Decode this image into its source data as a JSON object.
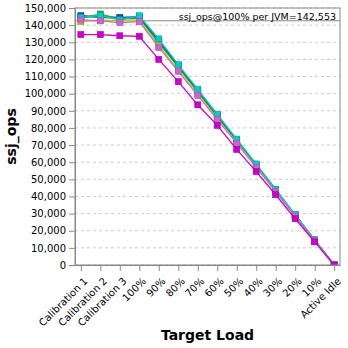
{
  "chart_data": {
    "type": "line",
    "x_label": "Target Load",
    "y_label": "ssj_ops",
    "categories": [
      "Calibration 1",
      "Calibration 2",
      "Calibration 3",
      "100%",
      "90%",
      "80%",
      "70%",
      "60%",
      "50%",
      "40%",
      "30%",
      "20%",
      "10%",
      "Active Idle"
    ],
    "series": [
      {
        "color": "#3333cc",
        "values": [
          145500,
          145000,
          144500,
          145000,
          131000,
          116500,
          102000,
          87500,
          73000,
          58500,
          44000,
          29200,
          14600,
          0
        ]
      },
      {
        "color": "#33aa33",
        "values": [
          144000,
          146500,
          143500,
          144000,
          129500,
          115500,
          101000,
          86500,
          72000,
          58000,
          43500,
          29000,
          14500,
          0
        ]
      },
      {
        "color": "#008080",
        "values": [
          145000,
          144500,
          144000,
          144500,
          130500,
          116000,
          101500,
          87000,
          72500,
          58200,
          43800,
          29100,
          14550,
          0
        ]
      },
      {
        "color": "#cccc00",
        "values": [
          142000,
          143000,
          142500,
          143000,
          128000,
          114000,
          100000,
          85500,
          71500,
          57500,
          43000,
          28600,
          14300,
          0
        ]
      },
      {
        "color": "#00cccc",
        "values": [
          144500,
          145500,
          143000,
          145500,
          132000,
          117000,
          102500,
          88000,
          73500,
          59000,
          44200,
          29400,
          14700,
          0
        ]
      },
      {
        "color": "#cc66cc",
        "values": [
          143000,
          142500,
          141500,
          142000,
          127000,
          113000,
          99000,
          85000,
          71000,
          57000,
          42700,
          28500,
          14200,
          0
        ]
      },
      {
        "color": "#cc00cc",
        "values": [
          134500,
          134500,
          133800,
          133500,
          120000,
          107000,
          93500,
          81500,
          67500,
          54500,
          41000,
          27000,
          13500,
          0
        ]
      }
    ],
    "reference_line": {
      "value": 142553,
      "label": "ssj_ops@100% per JVM=142,553"
    },
    "ylim": [
      0,
      150000
    ],
    "yticks": [
      0,
      {
        "value": 10000,
        "label": "10,000"
      },
      {
        "value": 20000,
        "label": "20,000"
      },
      {
        "value": 30000,
        "label": "30,000"
      },
      {
        "value": 40000,
        "label": "40,000"
      },
      {
        "value": 50000,
        "label": "50,000"
      },
      {
        "value": 60000,
        "label": "60,000"
      },
      {
        "value": 70000,
        "label": "70,000"
      },
      {
        "value": 80000,
        "label": "80,000"
      },
      {
        "value": 90000,
        "label": "90,000"
      },
      {
        "value": 100000,
        "label": "100,000"
      },
      {
        "value": 110000,
        "label": "110,000"
      },
      {
        "value": 120000,
        "label": "120,000"
      },
      {
        "value": 130000,
        "label": "130,000"
      },
      {
        "value": 140000,
        "label": "140,000"
      },
      {
        "value": 150000,
        "label": "150,000"
      }
    ],
    "grid": true,
    "marker": "square",
    "line_style": "solid"
  }
}
